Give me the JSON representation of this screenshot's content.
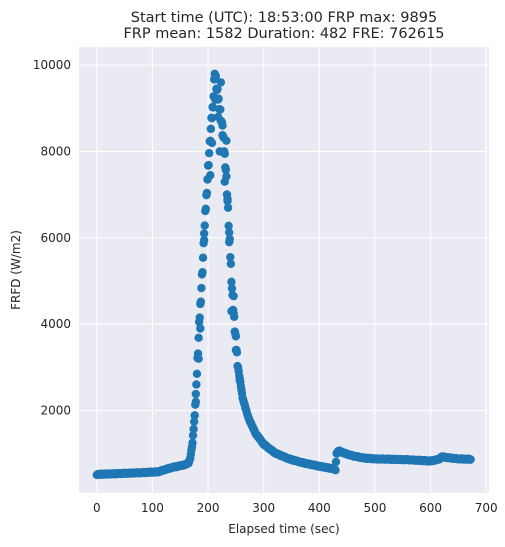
{
  "chart_data": {
    "type": "scatter",
    "title_lines": [
      "Start time (UTC): 18:53:00 FRP max: 9895",
      "FRP mean: 1582 Duration: 482 FRE: 762615"
    ],
    "xlabel": "Elapsed time (sec)",
    "ylabel": "FRFD (W/m2)",
    "xlim": [
      -32,
      705
    ],
    "ylim": [
      90,
      10420
    ],
    "xticks": [
      0,
      100,
      200,
      300,
      400,
      500,
      600,
      700
    ],
    "yticks": [
      2000,
      4000,
      6000,
      8000,
      10000
    ],
    "grid": true,
    "legend": "none",
    "style": {
      "background": "#EAEAF2",
      "grid_color": "#FFFFFF",
      "marker_color": "#1F77B4"
    },
    "anchors": [
      [
        0,
        520
      ],
      [
        40,
        540
      ],
      [
        80,
        560
      ],
      [
        110,
        580
      ],
      [
        120,
        620
      ],
      [
        135,
        680
      ],
      [
        150,
        720
      ],
      [
        160,
        750
      ],
      [
        165,
        790
      ],
      [
        168,
        900
      ],
      [
        172,
        1250
      ],
      [
        176,
        1900
      ],
      [
        180,
        2850
      ],
      [
        185,
        4200
      ],
      [
        190,
        5300
      ],
      [
        195,
        6500
      ],
      [
        200,
        7600
      ],
      [
        205,
        8500
      ],
      [
        210,
        9300
      ],
      [
        212,
        9895
      ],
      [
        216,
        9400
      ],
      [
        220,
        9100
      ],
      [
        224,
        8700
      ],
      [
        228,
        8200
      ],
      [
        232,
        7600
      ],
      [
        236,
        6600
      ],
      [
        240,
        5600
      ],
      [
        244,
        4600
      ],
      [
        248,
        3900
      ],
      [
        254,
        3000
      ],
      [
        262,
        2300
      ],
      [
        272,
        1850
      ],
      [
        285,
        1480
      ],
      [
        300,
        1220
      ],
      [
        320,
        1020
      ],
      [
        345,
        880
      ],
      [
        370,
        790
      ],
      [
        400,
        710
      ],
      [
        425,
        650
      ],
      [
        429,
        630
      ],
      [
        431,
        1000
      ],
      [
        435,
        1070
      ],
      [
        445,
        1010
      ],
      [
        460,
        950
      ],
      [
        480,
        900
      ],
      [
        500,
        880
      ],
      [
        530,
        870
      ],
      [
        560,
        860
      ],
      [
        600,
        830
      ],
      [
        615,
        870
      ],
      [
        620,
        930
      ],
      [
        630,
        910
      ],
      [
        650,
        880
      ],
      [
        672,
        870
      ]
    ],
    "scatter_offsets": [
      [
        193,
        6100
      ],
      [
        199,
        7350
      ],
      [
        204,
        7450
      ],
      [
        207,
        8200
      ],
      [
        218,
        8800
      ],
      [
        221,
        8000
      ],
      [
        226,
        8600
      ],
      [
        230,
        7300
      ],
      [
        233,
        8250
      ],
      [
        238,
        5900
      ],
      [
        242,
        4300
      ],
      [
        246,
        4650
      ],
      [
        250,
        3400
      ],
      [
        257,
        2700
      ],
      [
        178,
        2200
      ],
      [
        183,
        3200
      ],
      [
        186,
        3900
      ],
      [
        223,
        9600
      ],
      [
        213,
        9200
      ],
      [
        235,
        6900
      ]
    ]
  }
}
